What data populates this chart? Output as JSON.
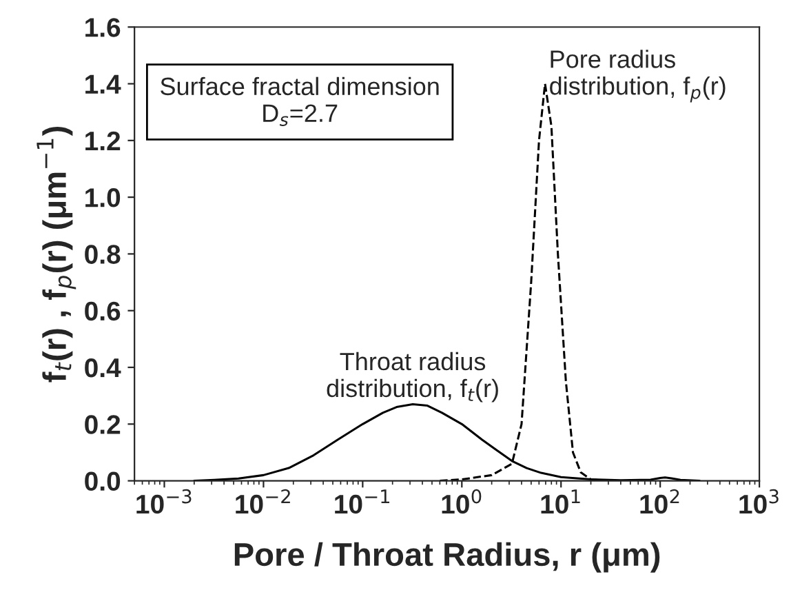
{
  "chart_data": {
    "type": "line",
    "xlabel": "Pore / Throat Radius, r (μm)",
    "ylabel": "f$_{t}$(r) , f$_{p}$(r) (μm$^{−1}$)",
    "annotations": [
      "Surface fractal dimension\nD$_{s}$=2.7"
    ],
    "log": "x",
    "xlim": [
      0.0005,
      1000
    ],
    "xticks": [
      {
        "value": 0.001,
        "label": "10$^{−3}$"
      },
      {
        "value": 0.01,
        "label": "10$^{−2}$"
      },
      {
        "value": 0.1,
        "label": "10$^{−1}$"
      },
      {
        "value": 1,
        "label": "10$^{0}$"
      },
      {
        "value": 10,
        "label": "10$^{1}$"
      },
      {
        "value": 100,
        "label": "10$^{2}$"
      },
      {
        "value": 1000,
        "label": "10$^{3}$"
      }
    ],
    "ylim": [
      0,
      1.6
    ],
    "yticks": [
      {
        "value": 0,
        "label": "0.0"
      },
      {
        "value": 0.2,
        "label": "0.2"
      },
      {
        "value": 0.4,
        "label": "0.4"
      },
      {
        "value": 0.6,
        "label": "0.6"
      },
      {
        "value": 0.8,
        "label": "0.8"
      },
      {
        "value": 1.0,
        "label": "1.0"
      },
      {
        "value": 1.2,
        "label": "1.2"
      },
      {
        "value": 1.4,
        "label": "1.4"
      },
      {
        "value": 1.6,
        "label": "1.6"
      }
    ],
    "grid": false,
    "legend": false,
    "series": [
      {
        "name": "Throat radius\ndistribution, f$_{t}$(r)",
        "color": "#000000",
        "line_style": "solid",
        "x": [
          0.002,
          0.0032,
          0.0056,
          0.01,
          0.018,
          0.032,
          0.056,
          0.1,
          0.16,
          0.22,
          0.32,
          0.45,
          0.63,
          1,
          1.6,
          2.2,
          3.2,
          4.5,
          6.3,
          10,
          20,
          40,
          80,
          100,
          112,
          130,
          160,
          250
        ],
        "values": [
          0,
          0.003,
          0.008,
          0.02,
          0.045,
          0.09,
          0.145,
          0.2,
          0.24,
          0.26,
          0.27,
          0.265,
          0.24,
          0.2,
          0.145,
          0.11,
          0.07,
          0.045,
          0.028,
          0.013,
          0.005,
          0.002,
          0.004,
          0.01,
          0.012,
          0.009,
          0.003,
          0
        ]
      },
      {
        "name": "Pore radius\ndistribution, f$_{p}$(r)",
        "color": "#000000",
        "line_style": "dashed",
        "x": [
          0.6,
          1,
          2,
          3.2,
          4,
          5,
          6,
          6.9,
          8,
          9.3,
          11.2,
          13.2,
          15.8,
          20,
          32
        ],
        "values": [
          0,
          0.005,
          0.02,
          0.06,
          0.2,
          0.7,
          1.2,
          1.4,
          1.25,
          0.8,
          0.35,
          0.1,
          0.03,
          0.005,
          0
        ]
      }
    ]
  }
}
